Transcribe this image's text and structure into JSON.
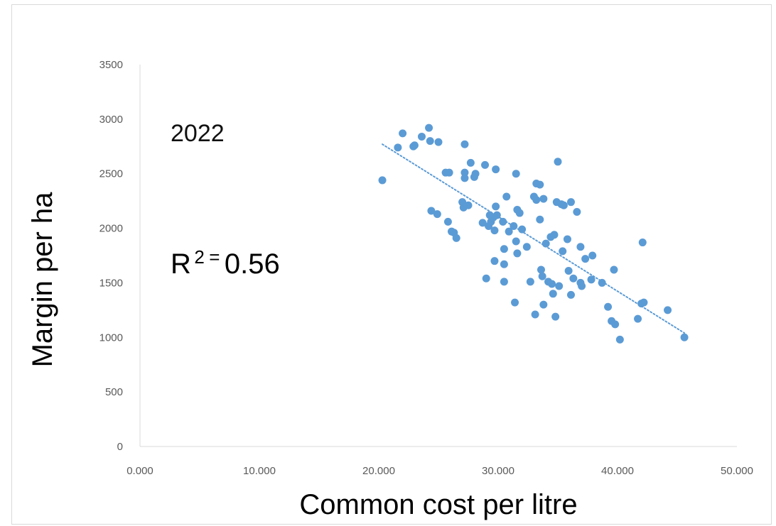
{
  "chart_data": {
    "type": "scatter",
    "title": "",
    "xlabel": "Common cost per litre",
    "ylabel": "Margin per ha",
    "xlim": [
      0,
      50
    ],
    "ylim": [
      0,
      3500
    ],
    "x_ticks": [
      "0.000",
      "10.000",
      "20.000",
      "30.000",
      "40.000",
      "50.000"
    ],
    "y_ticks": [
      "0",
      "500",
      "1000",
      "1500",
      "2000",
      "2500",
      "3000",
      "3500"
    ],
    "grid": false,
    "legend": "none",
    "marker_color": "#5b9bd5",
    "trendline": {
      "style": "dotted-linear",
      "color": "#5b9bd5",
      "x": [
        20.3,
        45.6
      ],
      "y": [
        2770,
        1040
      ]
    },
    "annotations": {
      "year": "2022",
      "r2_label": "R",
      "r2_sup": "2",
      "r2_eq": "=",
      "r2_value": "0.56"
    },
    "series": [
      {
        "points": [
          [
            20.3,
            2440
          ],
          [
            21.6,
            2740
          ],
          [
            22.0,
            2870
          ],
          [
            22.9,
            2750
          ],
          [
            23.0,
            2760
          ],
          [
            23.6,
            2840
          ],
          [
            24.2,
            2920
          ],
          [
            24.3,
            2800
          ],
          [
            25.0,
            2790
          ],
          [
            24.4,
            2160
          ],
          [
            24.9,
            2130
          ],
          [
            25.6,
            2510
          ],
          [
            25.9,
            2510
          ],
          [
            25.8,
            2060
          ],
          [
            26.1,
            1970
          ],
          [
            26.3,
            1960
          ],
          [
            26.5,
            1910
          ],
          [
            27.0,
            2240
          ],
          [
            27.1,
            2190
          ],
          [
            27.2,
            2460
          ],
          [
            27.2,
            2510
          ],
          [
            27.2,
            2770
          ],
          [
            27.5,
            2210
          ],
          [
            27.7,
            2600
          ],
          [
            28.0,
            2470
          ],
          [
            28.1,
            2500
          ],
          [
            28.7,
            2050
          ],
          [
            28.9,
            2580
          ],
          [
            29.0,
            1540
          ],
          [
            29.2,
            2020
          ],
          [
            29.3,
            2120
          ],
          [
            29.4,
            2060
          ],
          [
            29.6,
            2100
          ],
          [
            29.7,
            1980
          ],
          [
            29.7,
            1700
          ],
          [
            29.8,
            2540
          ],
          [
            29.8,
            2200
          ],
          [
            29.9,
            2120
          ],
          [
            30.4,
            2060
          ],
          [
            30.5,
            1810
          ],
          [
            30.5,
            1670
          ],
          [
            30.5,
            1510
          ],
          [
            30.7,
            2290
          ],
          [
            30.9,
            1970
          ],
          [
            31.3,
            2020
          ],
          [
            31.4,
            1320
          ],
          [
            31.5,
            2500
          ],
          [
            31.5,
            1880
          ],
          [
            31.6,
            2170
          ],
          [
            31.6,
            1770
          ],
          [
            31.8,
            2140
          ],
          [
            32.0,
            1990
          ],
          [
            32.4,
            1830
          ],
          [
            32.7,
            1510
          ],
          [
            33.0,
            2290
          ],
          [
            33.1,
            1210
          ],
          [
            33.2,
            2410
          ],
          [
            33.2,
            2260
          ],
          [
            33.5,
            2400
          ],
          [
            33.5,
            2080
          ],
          [
            33.6,
            1620
          ],
          [
            33.7,
            1560
          ],
          [
            33.8,
            2270
          ],
          [
            33.8,
            1300
          ],
          [
            34.0,
            1860
          ],
          [
            34.2,
            1510
          ],
          [
            34.4,
            1920
          ],
          [
            34.5,
            1490
          ],
          [
            34.6,
            1400
          ],
          [
            34.7,
            1940
          ],
          [
            34.8,
            1190
          ],
          [
            34.9,
            2240
          ],
          [
            35.0,
            2610
          ],
          [
            35.1,
            1470
          ],
          [
            35.3,
            2220
          ],
          [
            35.4,
            1790
          ],
          [
            35.5,
            2210
          ],
          [
            35.8,
            1900
          ],
          [
            35.9,
            1610
          ],
          [
            36.1,
            2240
          ],
          [
            36.1,
            1390
          ],
          [
            36.3,
            1540
          ],
          [
            36.6,
            2150
          ],
          [
            36.9,
            1830
          ],
          [
            36.9,
            1500
          ],
          [
            37.0,
            1470
          ],
          [
            37.3,
            1720
          ],
          [
            37.8,
            1530
          ],
          [
            37.9,
            1750
          ],
          [
            38.7,
            1500
          ],
          [
            39.2,
            1280
          ],
          [
            39.5,
            1150
          ],
          [
            39.7,
            1620
          ],
          [
            39.8,
            1120
          ],
          [
            40.2,
            980
          ],
          [
            41.7,
            1170
          ],
          [
            42.0,
            1310
          ],
          [
            42.1,
            1870
          ],
          [
            42.2,
            1320
          ],
          [
            44.2,
            1250
          ],
          [
            45.6,
            1000
          ]
        ]
      }
    ]
  }
}
